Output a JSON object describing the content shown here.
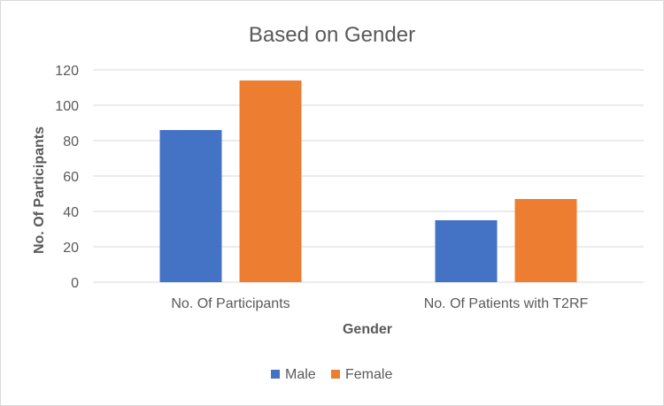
{
  "chart_data": {
    "type": "bar",
    "title": "Based on Gender",
    "xlabel": "Gender",
    "ylabel": "No. Of Participants",
    "categories": [
      "No. Of Participants",
      "No. Of Patients with T2RF"
    ],
    "series": [
      {
        "name": "Male",
        "values": [
          86,
          35
        ],
        "color": "#4472c4"
      },
      {
        "name": "Female",
        "values": [
          114,
          47
        ],
        "color": "#ed7d31"
      }
    ],
    "ylim": [
      0,
      120
    ],
    "yticks": [
      0,
      20,
      40,
      60,
      80,
      100,
      120
    ],
    "grid": true,
    "legend_position": "bottom"
  }
}
